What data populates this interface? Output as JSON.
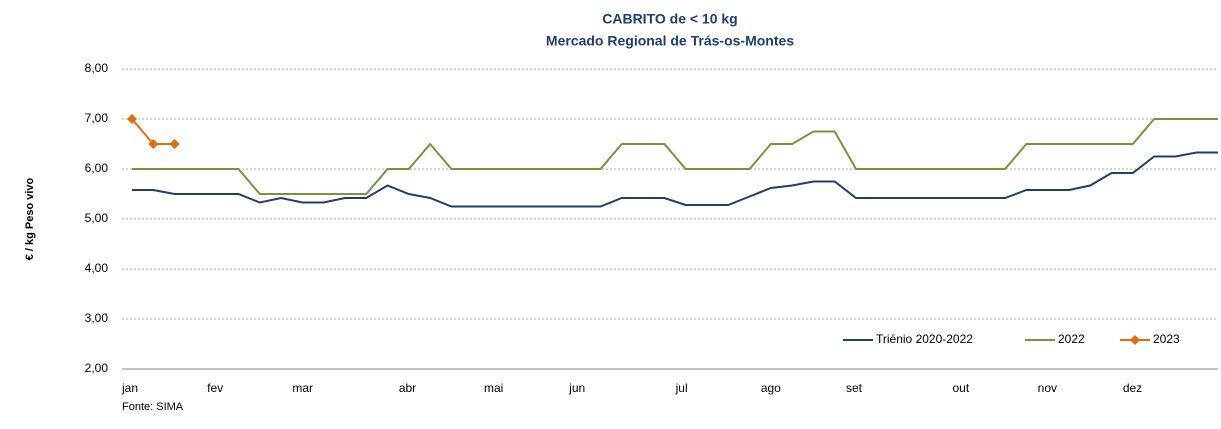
{
  "chart_data": {
    "type": "line",
    "title": "CABRITO de < 10 kg",
    "subtitle": "Mercado Regional de Trás-os-Montes",
    "y_label": "€ / kg Peso vivo",
    "source": "Fonte: SIMA",
    "categories": [
      "jan",
      null,
      null,
      null,
      "fev",
      null,
      null,
      null,
      "mar",
      null,
      null,
      null,
      null,
      "abr",
      null,
      null,
      null,
      "mai",
      null,
      null,
      null,
      "jun",
      null,
      null,
      null,
      null,
      "jul",
      null,
      null,
      null,
      "ago",
      null,
      null,
      null,
      "set",
      null,
      null,
      null,
      null,
      "out",
      null,
      null,
      null,
      "nov",
      null,
      null,
      null,
      "dez",
      null,
      null,
      null,
      null
    ],
    "series": [
      {
        "name": "Triénio 2020-2022",
        "color": "#1f3d6e",
        "marker": false,
        "values": [
          5.58,
          5.58,
          5.5,
          5.5,
          5.5,
          5.5,
          5.33,
          5.42,
          5.33,
          5.33,
          5.42,
          5.42,
          5.67,
          5.5,
          5.42,
          5.25,
          5.25,
          5.25,
          5.25,
          5.25,
          5.25,
          5.25,
          5.25,
          5.42,
          5.42,
          5.42,
          5.28,
          5.28,
          5.28,
          5.45,
          5.62,
          5.67,
          5.75,
          5.75,
          5.42,
          5.42,
          5.42,
          5.42,
          5.42,
          5.42,
          5.42,
          5.42,
          5.58,
          5.58,
          5.58,
          5.67,
          5.92,
          5.92,
          6.25,
          6.25,
          6.33,
          6.33
        ]
      },
      {
        "name": "2022",
        "color": "#77933c",
        "marker": false,
        "values": [
          6,
          6,
          6,
          6,
          6,
          6,
          5.5,
          5.5,
          5.5,
          5.5,
          5.5,
          5.5,
          6,
          6,
          6.5,
          6,
          6,
          6,
          6,
          6,
          6,
          6,
          6,
          6.5,
          6.5,
          6.5,
          6,
          6,
          6,
          6,
          6.5,
          6.5,
          6.75,
          6.75,
          6,
          6,
          6,
          6,
          6,
          6,
          6,
          6,
          6.5,
          6.5,
          6.5,
          6.5,
          6.5,
          6.5,
          7,
          7,
          7,
          7
        ]
      },
      {
        "name": "2023",
        "color": "#e46c0a",
        "marker": true,
        "values": [
          7,
          6.5,
          6.5,
          null,
          null,
          null,
          null,
          null,
          null,
          null,
          null,
          null,
          null,
          null,
          null,
          null,
          null,
          null,
          null,
          null,
          null,
          null,
          null,
          null,
          null,
          null,
          null,
          null,
          null,
          null,
          null,
          null,
          null,
          null,
          null,
          null,
          null,
          null,
          null,
          null,
          null,
          null,
          null,
          null,
          null,
          null,
          null,
          null,
          null,
          null,
          null,
          null
        ]
      }
    ],
    "ylim": [
      2,
      8
    ],
    "yticks": [
      {
        "value": 2,
        "label": "2,00"
      },
      {
        "value": 3,
        "label": "3,00"
      },
      {
        "value": 4,
        "label": "4,00"
      },
      {
        "value": 5,
        "label": "5,00"
      },
      {
        "value": 6,
        "label": "6,00"
      },
      {
        "value": 7,
        "label": "7,00"
      },
      {
        "value": 8,
        "label": "8,00"
      }
    ],
    "grid": true,
    "legend": "bottom-right"
  }
}
